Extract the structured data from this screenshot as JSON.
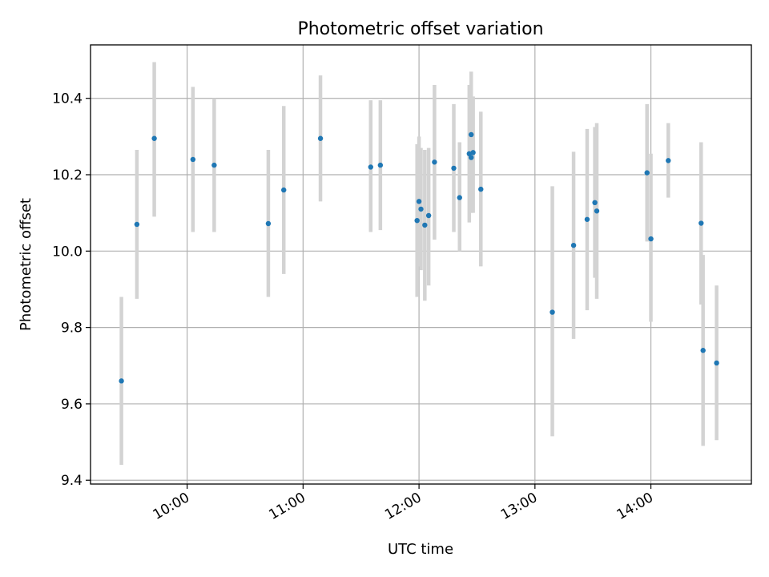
{
  "chart_data": {
    "type": "scatter",
    "title": "Photometric offset variation",
    "xlabel": "UTC time",
    "ylabel": "Photometric offset",
    "xlim": [
      "09:10",
      "14:52"
    ],
    "ylim": [
      9.39,
      10.54
    ],
    "x_ticks": [
      "10:00",
      "11:00",
      "12:00",
      "13:00",
      "14:00"
    ],
    "y_ticks": [
      "9.4",
      "9.6",
      "9.8",
      "10.0",
      "10.2",
      "10.4"
    ],
    "grid": true,
    "point_color": "#1f77b4",
    "errorbar_color": "#d3d3d3",
    "points": [
      {
        "t": "09:26",
        "y": 9.66,
        "lo": 9.44,
        "hi": 9.88
      },
      {
        "t": "09:34",
        "y": 10.07,
        "lo": 9.875,
        "hi": 10.265
      },
      {
        "t": "09:43",
        "y": 10.295,
        "lo": 10.09,
        "hi": 10.495
      },
      {
        "t": "10:03",
        "y": 10.24,
        "lo": 10.05,
        "hi": 10.43
      },
      {
        "t": "10:14",
        "y": 10.225,
        "lo": 10.05,
        "hi": 10.4
      },
      {
        "t": "10:42",
        "y": 10.072,
        "lo": 9.88,
        "hi": 10.265
      },
      {
        "t": "10:50",
        "y": 10.16,
        "lo": 9.94,
        "hi": 10.38
      },
      {
        "t": "11:09",
        "y": 10.295,
        "lo": 10.13,
        "hi": 10.46
      },
      {
        "t": "11:35",
        "y": 10.22,
        "lo": 10.05,
        "hi": 10.395
      },
      {
        "t": "11:40",
        "y": 10.225,
        "lo": 10.055,
        "hi": 10.395
      },
      {
        "t": "11:59",
        "y": 10.08,
        "lo": 9.88,
        "hi": 10.28
      },
      {
        "t": "12:00",
        "y": 10.13,
        "lo": 9.96,
        "hi": 10.3
      },
      {
        "t": "12:01",
        "y": 10.11,
        "lo": 9.95,
        "hi": 10.27
      },
      {
        "t": "12:03",
        "y": 10.068,
        "lo": 9.87,
        "hi": 10.265
      },
      {
        "t": "12:05",
        "y": 10.093,
        "lo": 9.91,
        "hi": 10.27
      },
      {
        "t": "12:08",
        "y": 10.233,
        "lo": 10.03,
        "hi": 10.435
      },
      {
        "t": "12:18",
        "y": 10.217,
        "lo": 10.05,
        "hi": 10.385
      },
      {
        "t": "12:21",
        "y": 10.14,
        "lo": 10.0,
        "hi": 10.285
      },
      {
        "t": "12:26",
        "y": 10.255,
        "lo": 10.075,
        "hi": 10.435
      },
      {
        "t": "12:27",
        "y": 10.305,
        "lo": 10.14,
        "hi": 10.47
      },
      {
        "t": "12:27",
        "y": 10.245,
        "lo": 10.1,
        "hi": 10.39
      },
      {
        "t": "12:28",
        "y": 10.258,
        "lo": 10.1,
        "hi": 10.405
      },
      {
        "t": "12:32",
        "y": 10.162,
        "lo": 9.96,
        "hi": 10.365
      },
      {
        "t": "13:09",
        "y": 9.84,
        "lo": 9.515,
        "hi": 10.17
      },
      {
        "t": "13:20",
        "y": 10.015,
        "lo": 9.77,
        "hi": 10.26
      },
      {
        "t": "13:27",
        "y": 10.083,
        "lo": 9.845,
        "hi": 10.32
      },
      {
        "t": "13:31",
        "y": 10.127,
        "lo": 9.93,
        "hi": 10.325
      },
      {
        "t": "13:32",
        "y": 10.105,
        "lo": 9.875,
        "hi": 10.335
      },
      {
        "t": "13:58",
        "y": 10.205,
        "lo": 10.025,
        "hi": 10.385
      },
      {
        "t": "14:00",
        "y": 10.032,
        "lo": 9.815,
        "hi": 10.255
      },
      {
        "t": "14:09",
        "y": 10.237,
        "lo": 10.14,
        "hi": 10.335
      },
      {
        "t": "14:26",
        "y": 10.073,
        "lo": 9.86,
        "hi": 10.285
      },
      {
        "t": "14:27",
        "y": 9.74,
        "lo": 9.49,
        "hi": 9.99
      },
      {
        "t": "14:34",
        "y": 9.707,
        "lo": 9.505,
        "hi": 9.91
      }
    ]
  }
}
